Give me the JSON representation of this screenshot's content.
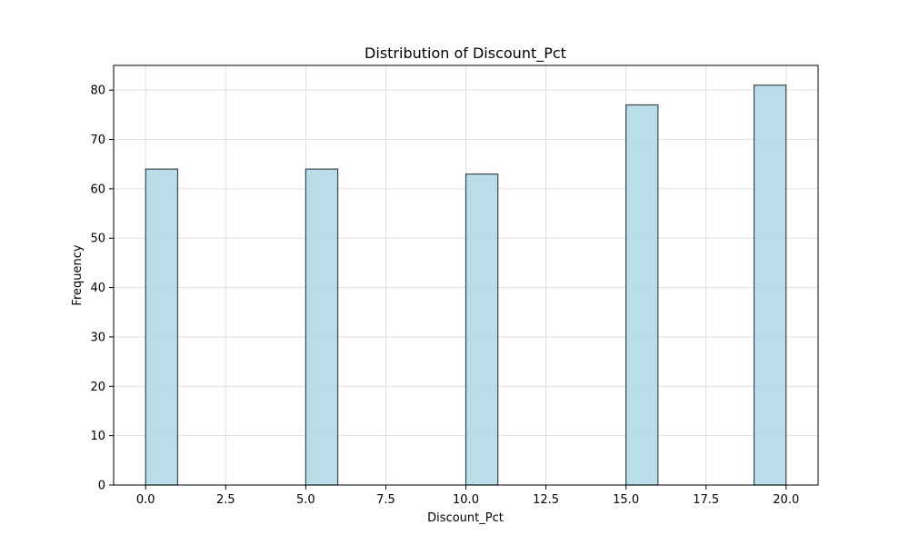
{
  "chart_data": {
    "type": "bar",
    "title": "Distribution of Discount_Pct",
    "xlabel": "Discount_Pct",
    "ylabel": "Frequency",
    "bins": [
      {
        "start": 0.0,
        "end": 1.0,
        "count": 64
      },
      {
        "start": 5.0,
        "end": 6.0,
        "count": 64
      },
      {
        "start": 10.0,
        "end": 11.0,
        "count": 63
      },
      {
        "start": 15.0,
        "end": 16.0,
        "count": 77
      },
      {
        "start": 19.0,
        "end": 20.0,
        "count": 81
      }
    ],
    "xlim": [
      -1.0,
      21.0
    ],
    "ylim": [
      0,
      85
    ],
    "xticks": [
      0.0,
      2.5,
      5.0,
      7.5,
      10.0,
      12.5,
      15.0,
      17.5,
      20.0
    ],
    "xtick_labels": [
      "0.0",
      "2.5",
      "5.0",
      "7.5",
      "10.0",
      "12.5",
      "15.0",
      "17.5",
      "20.0"
    ],
    "yticks": [
      0,
      10,
      20,
      30,
      40,
      50,
      60,
      70,
      80
    ],
    "ytick_labels": [
      "0",
      "10",
      "20",
      "30",
      "40",
      "50",
      "60",
      "70",
      "80"
    ],
    "grid": true,
    "bar_color": "#ADD8E6",
    "edge_color": "#000000"
  }
}
